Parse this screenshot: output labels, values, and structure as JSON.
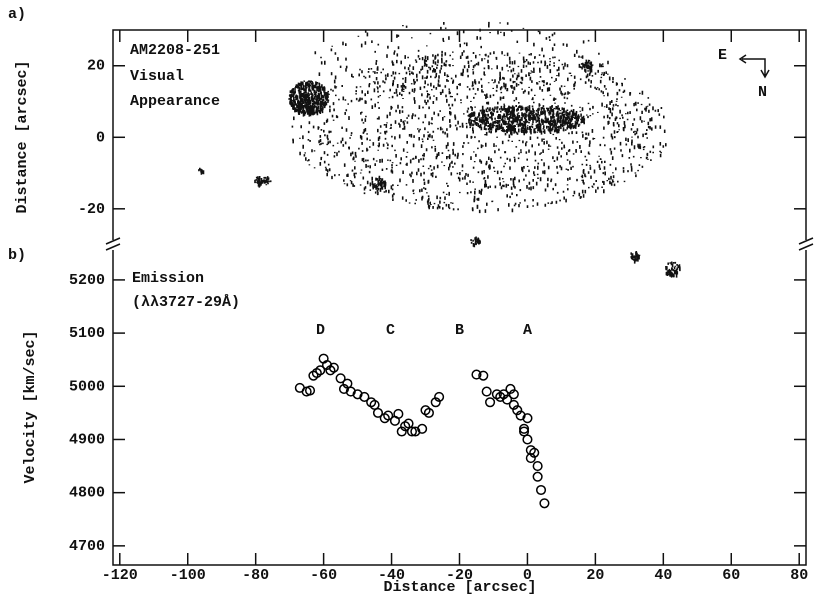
{
  "chart_data": [
    {
      "type": "image",
      "panel_label": "a)",
      "ylabel": "Distance [arcsec]",
      "ylim": [
        -29,
        30
      ],
      "yticks": [
        -20,
        0,
        20
      ],
      "annotation": [
        "AM2208-251",
        "Visual",
        "Appearance"
      ],
      "compass": [
        "E",
        "N"
      ]
    },
    {
      "type": "scatter",
      "panel_label": "b)",
      "xlabel": "Distance [arcsec]",
      "ylabel": "Velocity [km/sec]",
      "xlim": [
        -122,
        82
      ],
      "xticks": [
        -120,
        -100,
        -80,
        -60,
        -40,
        -20,
        0,
        20,
        40,
        60,
        80
      ],
      "ylim": [
        4664,
        5260
      ],
      "yticks": [
        4700,
        4800,
        4900,
        5000,
        5100,
        5200
      ],
      "annotation": [
        "Emission",
        "(λλ3727-29Å)"
      ],
      "regions": [
        "D",
        "C",
        "B",
        "A"
      ],
      "series": [
        {
          "color": "#000000",
          "x": [
            -67,
            -65,
            -64,
            -63,
            -62,
            -61,
            -60,
            -59,
            -58,
            -57,
            -55,
            -54,
            -53,
            -52,
            -50,
            -48,
            -46,
            -45,
            -44,
            -42,
            -41,
            -39,
            -38,
            -37,
            -36,
            -35,
            -34,
            -33,
            -31,
            -30,
            -29,
            -27,
            -26,
            -15,
            -13,
            -12,
            -11,
            -9,
            -8,
            -7,
            -6,
            -5,
            -4,
            -4,
            -3,
            -2,
            -1,
            -1,
            0,
            0,
            1,
            1,
            2,
            3,
            3,
            4,
            5
          ],
          "values": [
            4997,
            4990,
            4992,
            5020,
            5025,
            5030,
            5052,
            5040,
            5030,
            5035,
            5015,
            4995,
            5005,
            4990,
            4985,
            4980,
            4970,
            4965,
            4950,
            4940,
            4945,
            4935,
            4948,
            4915,
            4925,
            4930,
            4915,
            4915,
            4920,
            4955,
            4950,
            4970,
            4980,
            5022,
            5020,
            4990,
            4970,
            4985,
            4980,
            4985,
            4975,
            4995,
            4985,
            4965,
            4955,
            4945,
            4920,
            4915,
            4940,
            4900,
            4880,
            4865,
            4875,
            4850,
            4830,
            4805,
            4780
          ]
        }
      ]
    }
  ]
}
